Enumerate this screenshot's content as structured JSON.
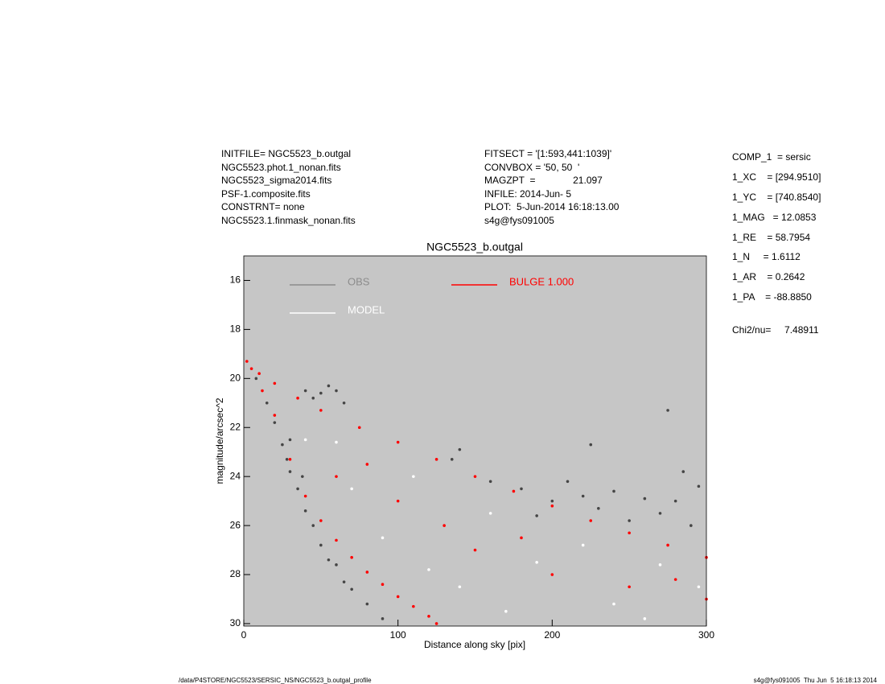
{
  "header": {
    "left": [
      "INITFILE= NGC5523_b.outgal",
      "NGC5523.phot.1_nonan.fits",
      "NGC5523_sigma2014.fits",
      "PSF-1.composite.fits",
      "CONSTRNT= none",
      "NGC5523.1.finmask_nonan.fits"
    ],
    "middle": [
      "FITSECT = '[1:593,441:1039]'",
      "CONVBOX = '50, 50  '",
      "MAGZPT  =              21.097",
      "INFILE: 2014-Jun- 5",
      "PLOT:  5-Jun-2014 16:18:13.00",
      "s4g@fys091005"
    ]
  },
  "parameters": [
    "COMP_1  = sersic",
    "1_XC    = [294.9510]",
    "1_YC    = [740.8540]",
    "1_MAG   = 12.0853",
    "1_RE    = 58.7954",
    "1_N     = 1.6112",
    "1_AR    = 0.2642",
    "1_PA    = -88.8850"
  ],
  "chi2": "Chi2/nu=     7.48911",
  "footer": {
    "left": "/data/P4STORE/NGC5523/SERSIC_NS/NGC5523_b.outgal_profile",
    "right": "s4g@fys091005  Thu Jun  5 16:18:13 2014"
  },
  "chart_data": {
    "type": "scatter",
    "title": "NGC5523_b.outgal",
    "x_label": "Distance along sky [pix]",
    "y_label": "magnitude/arcsec^2",
    "xlim": [
      0,
      300
    ],
    "xticks": [
      0,
      100,
      200,
      300
    ],
    "ylim": [
      30.1,
      15
    ],
    "yticks": [
      16,
      18,
      20,
      22,
      24,
      26,
      28,
      30
    ],
    "background": "#c6c6c6",
    "series": [
      {
        "name": "OBS",
        "color": "#454545",
        "legend_color": "#8c8c8c",
        "x": [
          8,
          15,
          20,
          25,
          28,
          30,
          35,
          40,
          45,
          50,
          55,
          60,
          65,
          70,
          80,
          90,
          30,
          38,
          40,
          50,
          55,
          60,
          65,
          45,
          135,
          140,
          180,
          200,
          210,
          220,
          230,
          240,
          250,
          260,
          270,
          280,
          290,
          295,
          275,
          225,
          285,
          190,
          160
        ],
        "values": [
          20.0,
          21.0,
          21.8,
          22.7,
          23.3,
          23.8,
          24.5,
          25.4,
          26.0,
          26.8,
          27.4,
          27.6,
          28.3,
          28.6,
          29.2,
          29.8,
          22.5,
          24.0,
          20.5,
          20.6,
          20.3,
          20.5,
          21.0,
          20.8,
          23.3,
          22.9,
          24.5,
          25.0,
          24.2,
          24.8,
          25.3,
          24.6,
          25.8,
          24.9,
          25.5,
          25.0,
          26.0,
          24.4,
          21.3,
          22.7,
          23.8,
          25.6,
          24.2
        ]
      },
      {
        "name": "BULGE  1.000",
        "color": "#ff0000",
        "legend_color": "#ff0000",
        "x": [
          2,
          10,
          20,
          35,
          50,
          75,
          100,
          125,
          150,
          175,
          200,
          225,
          250,
          275,
          300,
          5,
          12,
          20,
          30,
          40,
          50,
          60,
          70,
          80,
          90,
          100,
          110,
          120,
          125,
          60,
          100,
          150,
          200,
          250,
          300,
          80,
          130,
          180,
          280
        ],
        "values": [
          19.3,
          19.8,
          20.2,
          20.8,
          21.3,
          22.0,
          22.6,
          23.3,
          24.0,
          24.6,
          25.2,
          25.8,
          26.3,
          26.8,
          27.3,
          19.6,
          20.5,
          21.5,
          23.3,
          24.8,
          25.8,
          26.6,
          27.3,
          27.9,
          28.4,
          28.9,
          29.3,
          29.7,
          30.0,
          24,
          25,
          27,
          28,
          28.5,
          29,
          23.5,
          26,
          26.5,
          28.2
        ]
      },
      {
        "name": "MODEL",
        "color": "#ffffff",
        "legend_color": "#ffffff",
        "x": [
          40,
          70,
          90,
          110,
          140,
          160,
          190,
          220,
          240,
          270,
          295,
          120,
          60,
          170,
          260
        ],
        "values": [
          22.5,
          24.5,
          26.5,
          24.0,
          28.5,
          25.5,
          27.5,
          26.8,
          29.2,
          27.6,
          28.5,
          27.8,
          22.6,
          29.5,
          29.8
        ]
      }
    ]
  }
}
